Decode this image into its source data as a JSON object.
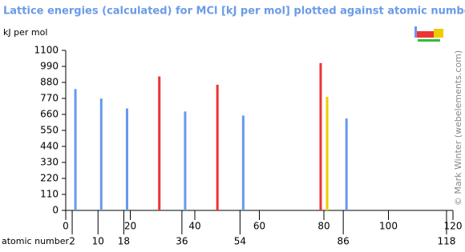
{
  "chart_data": {
    "type": "bar",
    "title": "Lattice energies (calculated) for MCl [kJ per mol] plotted against atomic number",
    "y_label": "kJ per mol",
    "x2_label": "atomic number",
    "credit": "© Mark Winter (webelements.com)",
    "x": [
      3,
      11,
      19,
      29,
      37,
      47,
      55,
      79,
      81,
      87
    ],
    "values": [
      834,
      769,
      701,
      921,
      680,
      864,
      652,
      1013,
      781,
      632
    ],
    "colors": [
      "#6699ee",
      "#6699ee",
      "#6699ee",
      "#ee3333",
      "#6699ee",
      "#ee3333",
      "#6699ee",
      "#ee3333",
      "#eecc00",
      "#6699ee"
    ],
    "xlim": [
      0,
      120
    ],
    "xticks": [
      0,
      20,
      40,
      60,
      80,
      100,
      120
    ],
    "x2ticks": [
      2,
      10,
      18,
      36,
      54,
      86,
      118
    ],
    "ylim": [
      0,
      1100
    ],
    "yticks": [
      0,
      110,
      220,
      330,
      440,
      550,
      660,
      770,
      880,
      990,
      1100
    ]
  }
}
